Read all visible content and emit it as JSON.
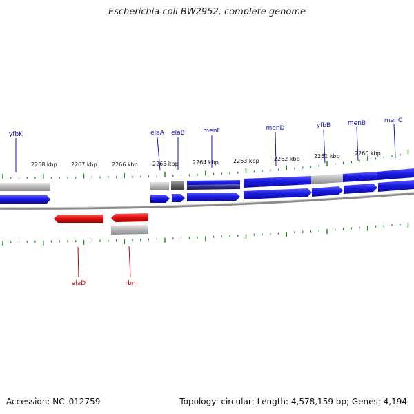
{
  "title": "Escherichia coli BW2952, complete genome",
  "footer": {
    "accession": "Accession: NC_012759",
    "summary": "Topology: circular; Length: 4,578,159 bp; Genes: 4,194"
  },
  "colors": {
    "forward_gene": "#1a1ae0",
    "reverse_gene": "#e01010",
    "gray_feature": "#b4b4b4",
    "dark_feature": "#2a2a80",
    "tick": "#1e8a1e",
    "forward_label": "#1010c8",
    "reverse_label": "#c00000"
  },
  "scale_labels": [
    "2268 kbp",
    "2267 kbp",
    "2266 kbp",
    "2265 kbp",
    "2264 kbp",
    "2263 kbp",
    "2262 kbp",
    "2261 kbp",
    "2260 kbp"
  ],
  "gene_labels": {
    "forward": [
      "yfbK",
      "elaA",
      "elaB",
      "menF",
      "menD",
      "yfbB",
      "menB",
      "menC"
    ],
    "reverse": [
      "elaD",
      "rbn"
    ]
  }
}
